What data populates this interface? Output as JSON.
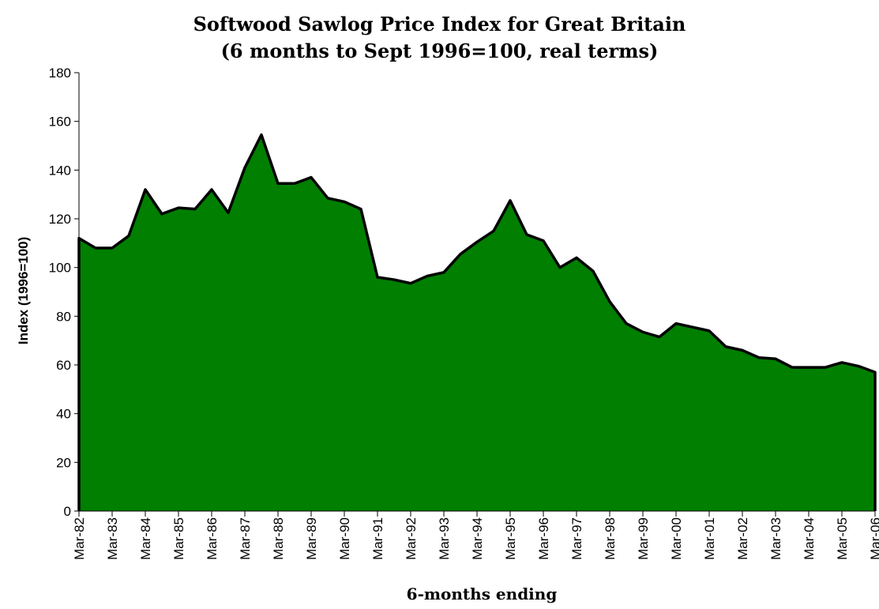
{
  "chart_data": {
    "type": "area",
    "title": "Softwood Sawlog Price Index for Great Britain",
    "subtitle": "(6 months to Sept 1996=100, real terms)",
    "xlabel": "6-months ending",
    "ylabel": "Index (1996=100)",
    "ylim": [
      0,
      180
    ],
    "yticks": [
      0,
      20,
      40,
      60,
      80,
      100,
      120,
      140,
      160,
      180
    ],
    "x_tick_labels": [
      "Mar-82",
      "Mar-83",
      "Mar-84",
      "Mar-85",
      "Mar-86",
      "Mar-87",
      "Mar-88",
      "Mar-89",
      "Mar-90",
      "Mar-91",
      "Mar-92",
      "Mar-93",
      "Mar-94",
      "Mar-95",
      "Mar-96",
      "Mar-97",
      "Mar-98",
      "Mar-99",
      "Mar-00",
      "Mar-01",
      "Mar-02",
      "Mar-03",
      "Mar-04",
      "Mar-05",
      "Mar-06"
    ],
    "grid": false,
    "fill_color": "#007f00",
    "line_color": "#000000",
    "x": [
      "Mar-82",
      "Sep-82",
      "Mar-83",
      "Sep-83",
      "Mar-84",
      "Sep-84",
      "Mar-85",
      "Sep-85",
      "Mar-86",
      "Sep-86",
      "Mar-87",
      "Sep-87",
      "Mar-88",
      "Sep-88",
      "Mar-89",
      "Sep-89",
      "Mar-90",
      "Sep-90",
      "Mar-91",
      "Sep-91",
      "Mar-92",
      "Sep-92",
      "Mar-93",
      "Sep-93",
      "Mar-94",
      "Sep-94",
      "Mar-95",
      "Sep-95",
      "Mar-96",
      "Sep-96",
      "Mar-97",
      "Sep-97",
      "Mar-98",
      "Sep-98",
      "Mar-99",
      "Sep-99",
      "Mar-00",
      "Sep-00",
      "Mar-01",
      "Sep-01",
      "Mar-02",
      "Sep-02",
      "Mar-03",
      "Sep-03",
      "Mar-04",
      "Sep-04",
      "Mar-05",
      "Sep-05",
      "Mar-06"
    ],
    "values": [
      112,
      108,
      108,
      113,
      132,
      122,
      124.5,
      124,
      132,
      122.5,
      141,
      154.5,
      134.5,
      134.5,
      137,
      128.5,
      127,
      124,
      96,
      95,
      93.5,
      96.5,
      98,
      105.5,
      110.5,
      115,
      127.5,
      113.5,
      111,
      100,
      104,
      98.5,
      86,
      77,
      73.5,
      71.5,
      77,
      75.5,
      74,
      67.5,
      66,
      63,
      62.5,
      59,
      59,
      59,
      61,
      59.5,
      57
    ]
  }
}
